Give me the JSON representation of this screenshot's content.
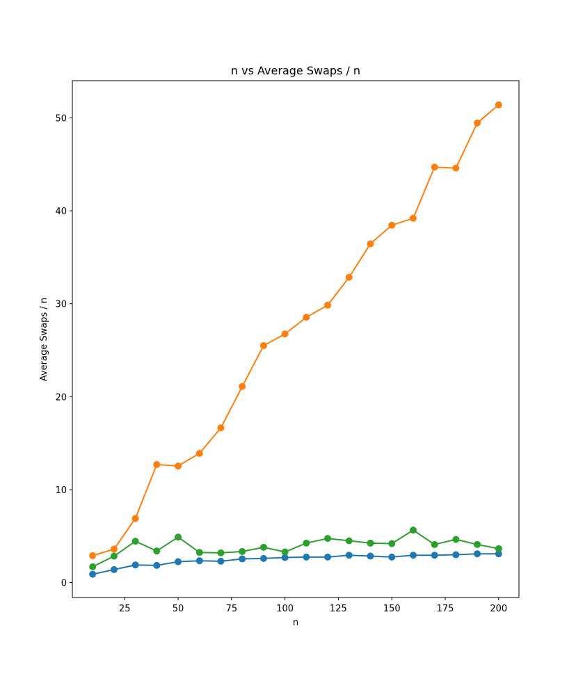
{
  "chart_data": {
    "type": "line",
    "title": "n vs Average Swaps / n",
    "xlabel": "n",
    "ylabel": "Average Swaps / n",
    "xlim": [
      0.5,
      209.5
    ],
    "ylim": [
      -1.6,
      54
    ],
    "x_ticks": [
      25,
      50,
      75,
      100,
      125,
      150,
      175,
      200
    ],
    "y_ticks": [
      0,
      10,
      20,
      30,
      40,
      50
    ],
    "grid": false,
    "legend": "none",
    "x": [
      10,
      20,
      30,
      40,
      50,
      60,
      70,
      80,
      90,
      100,
      110,
      120,
      130,
      140,
      150,
      160,
      170,
      180,
      190,
      200
    ],
    "series": [
      {
        "color": "#1f77b4",
        "values": [
          0.9,
          1.4,
          1.9,
          1.85,
          2.25,
          2.35,
          2.3,
          2.55,
          2.6,
          2.7,
          2.75,
          2.75,
          2.95,
          2.85,
          2.75,
          2.95,
          2.95,
          3.0,
          3.1,
          3.1
        ]
      },
      {
        "color": "#ff7f0e",
        "values": [
          2.9,
          3.6,
          6.9,
          12.7,
          12.55,
          13.9,
          16.65,
          21.1,
          25.5,
          26.75,
          28.55,
          29.85,
          32.85,
          36.45,
          38.45,
          39.2,
          44.7,
          44.6,
          49.45,
          51.4
        ]
      },
      {
        "color": "#2ca02c",
        "values": [
          1.7,
          2.85,
          4.45,
          3.4,
          4.9,
          3.25,
          3.2,
          3.35,
          3.8,
          3.3,
          4.25,
          4.75,
          4.5,
          4.25,
          4.2,
          5.65,
          4.1,
          4.65,
          4.1,
          3.65
        ]
      }
    ]
  }
}
